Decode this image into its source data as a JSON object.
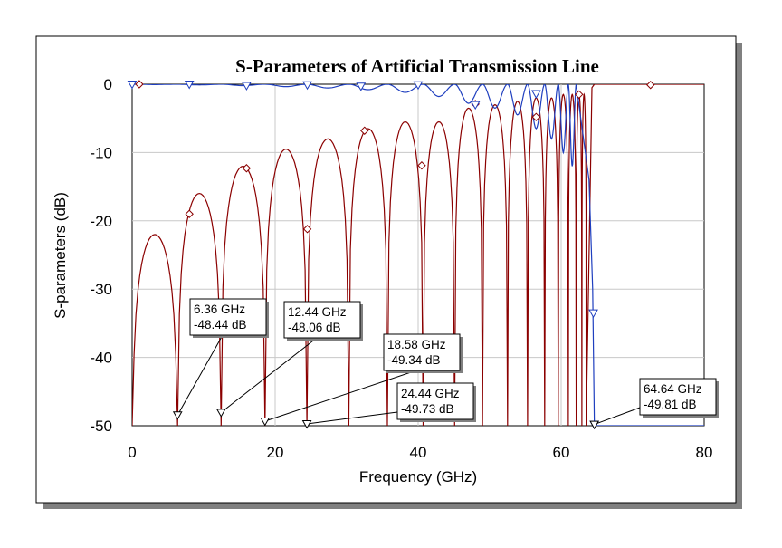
{
  "chart_data": {
    "type": "line",
    "title": "S-Parameters of Artificial Transmission Line",
    "xlabel": "Frequency (GHz)",
    "ylabel": "S-parameters (dB)",
    "xlim": [
      0,
      80
    ],
    "ylim": [
      -50,
      0
    ],
    "x_ticks": [
      "0",
      "20",
      "40",
      "60",
      "80"
    ],
    "y_ticks": [
      "0",
      "-10",
      "-20",
      "-30",
      "-40",
      "-50"
    ],
    "grid": true,
    "cutoff_ghz": 64.64,
    "series": [
      {
        "color": "#8b0000",
        "marker": "diamond",
        "notch_freqs_ghz": [
          6.36,
          12.44,
          18.58,
          24.44,
          30.3,
          35.7,
          40.7,
          45.1,
          49.0,
          52.5,
          55.3,
          57.7,
          59.6,
          61.0,
          62.1,
          62.9,
          63.5
        ],
        "lobe_peaks_db": [
          -22,
          -16,
          -12,
          -9.5,
          -8,
          -6.5,
          -5.5,
          -5.5,
          -3.5,
          -3,
          -2.5,
          -2,
          -2,
          -1.5,
          -1.5,
          -1.5,
          -1.5
        ],
        "marker_points": [
          [
            1,
            0
          ],
          [
            8,
            -19
          ],
          [
            16,
            -12.3
          ],
          [
            24.5,
            -21.2
          ],
          [
            32.5,
            -6.8
          ],
          [
            40.5,
            -11.9
          ],
          [
            48,
            -2.9
          ],
          [
            56.5,
            -4.8
          ],
          [
            62.5,
            -1.5
          ],
          [
            72.5,
            -0.1
          ]
        ]
      },
      {
        "color": "#1f3fbf",
        "marker": "triangle",
        "ripple_dips_db": [
          -0.05,
          -0.1,
          -0.2,
          -0.35,
          -0.55,
          -0.8,
          -1.2,
          -1.8,
          -2.8,
          -3.5,
          -4.5,
          -6.5,
          -8,
          -10,
          -12
        ],
        "stopband_floor_db": -50,
        "marker_points": [
          [
            0,
            0
          ],
          [
            8,
            0
          ],
          [
            16,
            -0.2
          ],
          [
            24.5,
            -0.1
          ],
          [
            32,
            -0.3
          ],
          [
            40,
            -0.1
          ],
          [
            48,
            -3
          ],
          [
            56.5,
            -1.4
          ],
          [
            64.5,
            -33.5
          ],
          [
            64.64,
            -49.81
          ]
        ]
      }
    ],
    "annotations": [
      {
        "freq": "6.36 GHz",
        "value": "-48.44 dB",
        "x": 6.36,
        "y": -48.44
      },
      {
        "freq": "12.44 GHz",
        "value": "-48.06 dB",
        "x": 12.44,
        "y": -48.06
      },
      {
        "freq": "18.58 GHz",
        "value": "-49.34 dB",
        "x": 18.58,
        "y": -49.34
      },
      {
        "freq": "24.44 GHz",
        "value": "-49.73 dB",
        "x": 24.44,
        "y": -49.73
      },
      {
        "freq": "64.64 GHz",
        "value": "-49.81 dB",
        "x": 64.64,
        "y": -49.81
      }
    ]
  }
}
